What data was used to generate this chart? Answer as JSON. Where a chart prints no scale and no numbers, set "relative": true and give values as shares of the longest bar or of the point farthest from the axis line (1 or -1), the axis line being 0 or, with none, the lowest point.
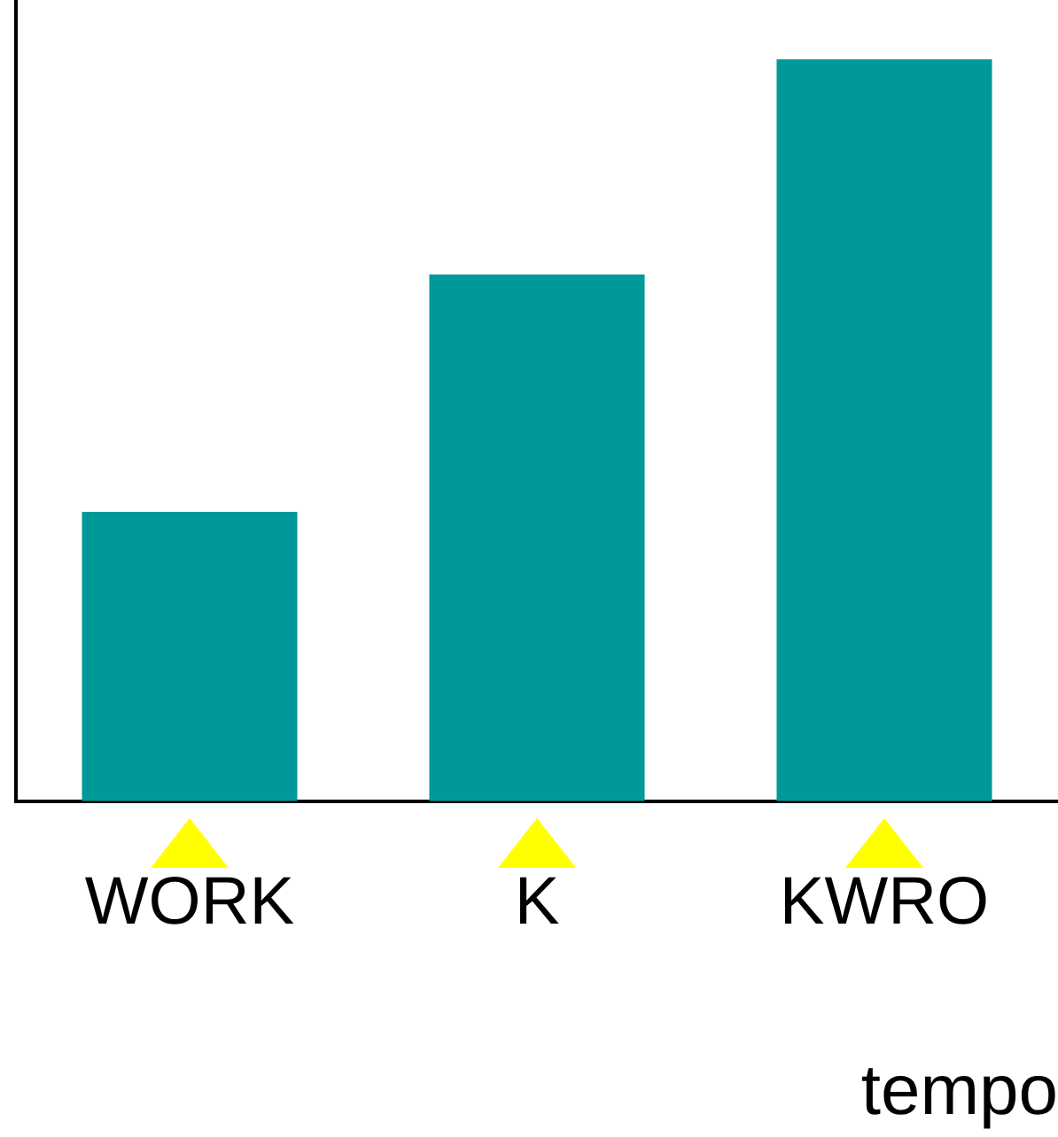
{
  "chart_data": {
    "type": "bar",
    "categories": [
      "WORK",
      "K",
      "KWRO"
    ],
    "values": [
      0.39,
      0.71,
      1
    ],
    "color": "#009999",
    "relative": true,
    "xlabel": "tempo",
    "grid": false,
    "legend": false
  }
}
